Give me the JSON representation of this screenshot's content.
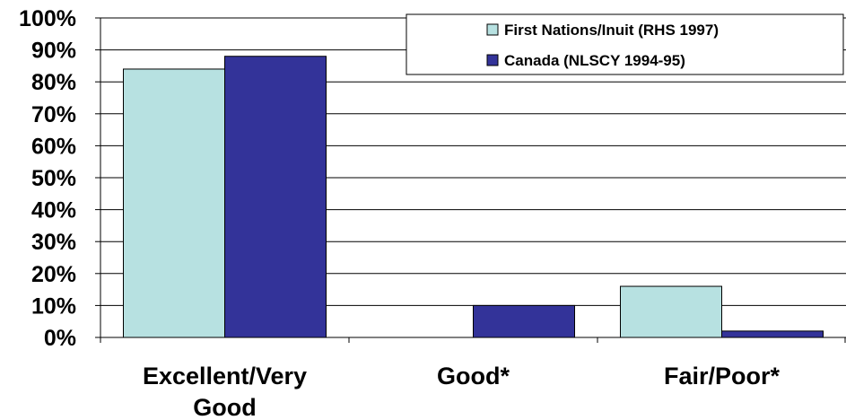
{
  "chart_data": {
    "type": "bar",
    "title": "",
    "xlabel": "",
    "ylabel": "",
    "categories": [
      "Excellent/Very Good",
      "Good*",
      "Fair/Poor*"
    ],
    "category_label_lines": [
      [
        "Excellent/Very",
        "Good"
      ],
      [
        "Good*"
      ],
      [
        "Fair/Poor*"
      ]
    ],
    "series": [
      {
        "name": "First Nations/Inuit (RHS 1997)",
        "color": "#b7e1e1",
        "values": [
          84,
          0,
          16
        ]
      },
      {
        "name": "Canada (NLSCY 1994-95)",
        "color": "#333399",
        "values": [
          88,
          10,
          2
        ]
      }
    ],
    "ylim": [
      0,
      100
    ],
    "yticks": [
      0,
      10,
      20,
      30,
      40,
      50,
      60,
      70,
      80,
      90,
      100
    ],
    "ytick_labels": [
      "0%",
      "10%",
      "20%",
      "30%",
      "40%",
      "50%",
      "60%",
      "70%",
      "80%",
      "90%",
      "100%"
    ],
    "grid": true,
    "legend_position": "top-right"
  }
}
